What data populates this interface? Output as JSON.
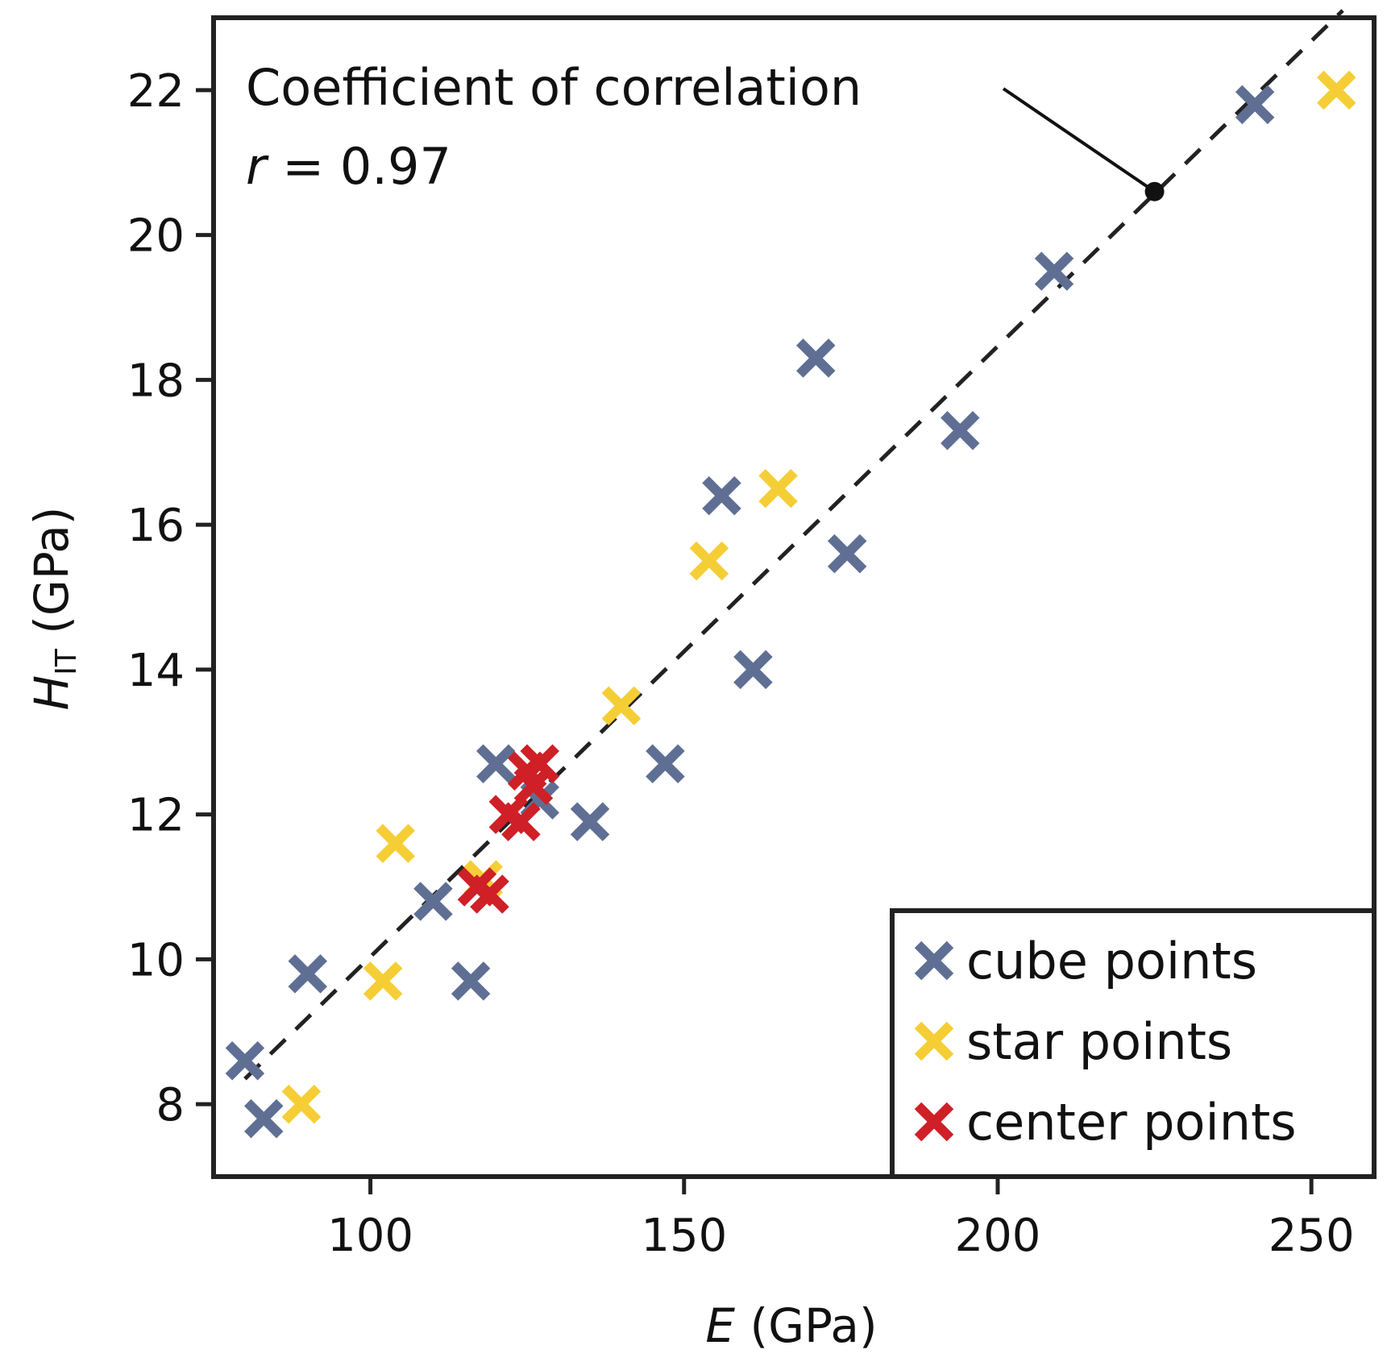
{
  "chart_data": {
    "type": "scatter",
    "title": "",
    "xlabel": {
      "var": "E",
      "unit": " (GPa)"
    },
    "ylabel": {
      "var": "H",
      "sub": "IT",
      "unit": " (GPa)"
    },
    "xlim": [
      75,
      260
    ],
    "ylim": [
      7,
      23
    ],
    "xticks": [
      100,
      150,
      200,
      250
    ],
    "yticks": [
      8,
      10,
      12,
      14,
      16,
      18,
      20,
      22
    ],
    "grid": false,
    "legend_position": "bottom-right",
    "series": [
      {
        "name": "cube points",
        "color": "#5f6f94",
        "points": [
          [
            80,
            8.6
          ],
          [
            83,
            7.8
          ],
          [
            90,
            9.8
          ],
          [
            110,
            10.8
          ],
          [
            116,
            9.7
          ],
          [
            120,
            12.7
          ],
          [
            127,
            12.2
          ],
          [
            135,
            11.9
          ],
          [
            147,
            12.7
          ],
          [
            156,
            16.4
          ],
          [
            161,
            14.0
          ],
          [
            171,
            18.3
          ],
          [
            176,
            15.6
          ],
          [
            194,
            17.3
          ],
          [
            209,
            19.5
          ],
          [
            241,
            21.8
          ]
        ]
      },
      {
        "name": "star points",
        "color": "#f5ce36",
        "points": [
          [
            89,
            8.0
          ],
          [
            102,
            9.7
          ],
          [
            104,
            11.6
          ],
          [
            118,
            11.1
          ],
          [
            140,
            13.5
          ],
          [
            154,
            15.5
          ],
          [
            165,
            16.5
          ],
          [
            254,
            22.0
          ]
        ]
      },
      {
        "name": "center points",
        "color": "#cf1f27",
        "points": [
          [
            117,
            11.0
          ],
          [
            119,
            10.9
          ],
          [
            122,
            12.0
          ],
          [
            124,
            11.9
          ],
          [
            125,
            12.6
          ],
          [
            126,
            12.4
          ],
          [
            127,
            12.7
          ]
        ]
      }
    ],
    "fit_line": {
      "x": [
        80,
        255
      ],
      "y": [
        8.35,
        23.1
      ],
      "style": "dashed"
    },
    "annotation": {
      "line1": "Coefficient of correlation",
      "r_symbol": "r",
      "r_value": " = 0.97",
      "point": [
        225,
        20.6
      ]
    }
  }
}
